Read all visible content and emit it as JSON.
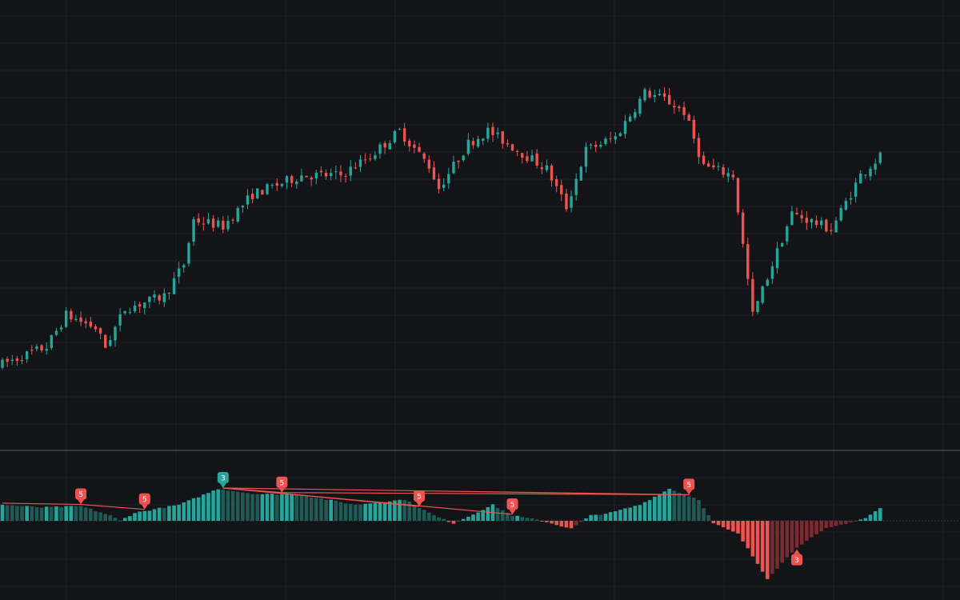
{
  "colors": {
    "background": "#131418",
    "grid": "#1f2026",
    "separator": "#363a45",
    "up": "#26a69a",
    "down": "#ef5350",
    "hist_up_strong": "#26a69a",
    "hist_up_weak": "#1e5b54",
    "hist_down_strong": "#ef5350",
    "hist_down_weak": "#7a2a30",
    "divergence_line": "#ef5350",
    "marker_bull": "#26a69a",
    "marker_bear": "#ef5350"
  },
  "chart_data": [
    {
      "type": "candlestick",
      "title": "",
      "xlabel": "",
      "ylabel": "",
      "grid": true,
      "ylim": [
        0,
        100
      ],
      "n_bars": 180,
      "trend_anchors": [
        [
          0,
          12
        ],
        [
          10,
          18
        ],
        [
          14,
          28
        ],
        [
          20,
          24
        ],
        [
          22,
          18
        ],
        [
          26,
          30
        ],
        [
          34,
          34
        ],
        [
          38,
          44
        ],
        [
          40,
          58
        ],
        [
          46,
          56
        ],
        [
          52,
          66
        ],
        [
          62,
          72
        ],
        [
          70,
          72
        ],
        [
          76,
          78
        ],
        [
          82,
          86
        ],
        [
          88,
          75
        ],
        [
          90,
          68
        ],
        [
          96,
          82
        ],
        [
          100,
          86
        ],
        [
          108,
          78
        ],
        [
          112,
          74
        ],
        [
          116,
          62
        ],
        [
          120,
          80
        ],
        [
          126,
          84
        ],
        [
          132,
          98
        ],
        [
          136,
          96
        ],
        [
          140,
          92
        ],
        [
          144,
          75
        ],
        [
          150,
          72
        ],
        [
          154,
          28
        ],
        [
          156,
          36
        ],
        [
          162,
          60
        ],
        [
          170,
          55
        ],
        [
          176,
          72
        ],
        [
          180,
          78
        ]
      ]
    },
    {
      "type": "bar",
      "title": "",
      "series_name": "",
      "ylim": [
        -25,
        15
      ],
      "n_bars": 180,
      "anchors": [
        [
          0,
          6
        ],
        [
          8,
          5
        ],
        [
          16,
          5.5
        ],
        [
          22,
          2
        ],
        [
          24,
          0
        ],
        [
          27,
          3
        ],
        [
          36,
          6
        ],
        [
          44,
          12
        ],
        [
          52,
          10
        ],
        [
          60,
          10
        ],
        [
          72,
          6
        ],
        [
          82,
          8
        ],
        [
          88,
          2
        ],
        [
          92,
          -1
        ],
        [
          100,
          6
        ],
        [
          104,
          2
        ],
        [
          110,
          0
        ],
        [
          116,
          -3
        ],
        [
          120,
          2
        ],
        [
          124,
          3
        ],
        [
          130,
          6
        ],
        [
          136,
          12
        ],
        [
          142,
          8
        ],
        [
          145,
          -1
        ],
        [
          150,
          -5
        ],
        [
          156,
          -22
        ],
        [
          162,
          -10
        ],
        [
          168,
          -3
        ],
        [
          172,
          -1
        ],
        [
          176,
          1
        ],
        [
          180,
          6
        ]
      ],
      "markers": [
        {
          "label": "5",
          "bar": 16,
          "kind": "bear"
        },
        {
          "label": "5",
          "bar": 29,
          "kind": "bear"
        },
        {
          "label": "3",
          "bar": 45,
          "kind": "bull"
        },
        {
          "label": "5",
          "bar": 57,
          "kind": "bear"
        },
        {
          "label": "5",
          "bar": 85,
          "kind": "bear"
        },
        {
          "label": "5",
          "bar": 104,
          "kind": "bear"
        },
        {
          "label": "5",
          "bar": 140,
          "kind": "bear"
        },
        {
          "label": "3",
          "bar": 162,
          "kind": "bear_bottom"
        }
      ],
      "divergence_lines": [
        [
          0,
          16
        ],
        [
          16,
          29
        ],
        [
          45,
          57
        ],
        [
          45,
          85
        ],
        [
          45,
          104
        ],
        [
          45,
          140
        ],
        [
          57,
          140
        ]
      ]
    }
  ]
}
